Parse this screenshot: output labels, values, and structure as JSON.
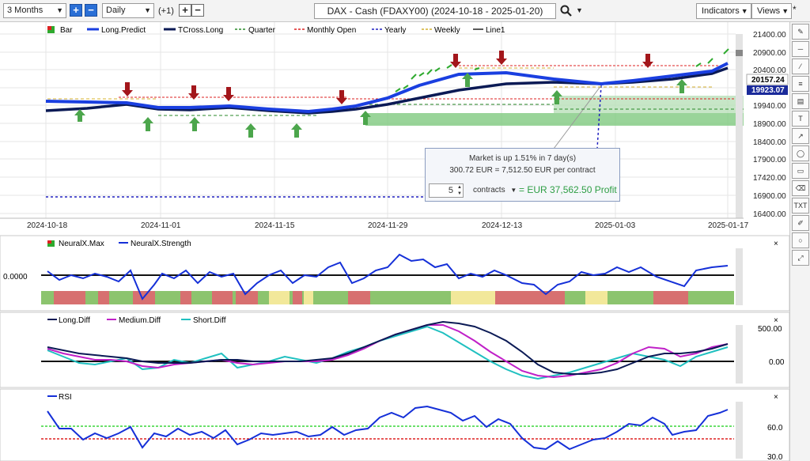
{
  "toolbar": {
    "range": "3 Months",
    "interval": "Daily",
    "offset": "(+1)",
    "title": "DAX - Cash (FDAXY00) (2024-10-18 - 2025-01-20)",
    "indicators": "Indicators",
    "views": "Views",
    "pin": "*",
    "plus": "+",
    "minus": "−"
  },
  "legend": {
    "bar": "Bar",
    "long_predict": "Long.Predict",
    "tcross_long": "TCross.Long",
    "quarter": "Quarter",
    "monthly_open": "Monthly Open",
    "yearly": "Yearly",
    "weekly": "Weekly",
    "line1": "Line1"
  },
  "price_axis": {
    "labels": [
      "21400.00",
      "20900.00",
      "20400.00",
      "19940.00",
      "18900.00",
      "18400.00",
      "17900.00",
      "17420.00",
      "16900.00",
      "16400.00"
    ],
    "last_price": "20157.24",
    "second_price": "19923.07"
  },
  "date_axis": [
    "2024-10-18",
    "2024-11-01",
    "2024-11-15",
    "2024-11-29",
    "2024-12-13",
    "2025-01-03",
    "2025-01-17"
  ],
  "popup": {
    "line1": "Market is up 1.51% in 7 day(s)",
    "line2": "300.72 EUR = 7,512.50 EUR per contract",
    "quantity": "5",
    "unit": "contracts",
    "profit": "= EUR 37,562.50 Profit"
  },
  "neural": {
    "legend_max": "NeuralX.Max",
    "legend_strength": "NeuralX.Strength",
    "axis_label": "0.0000",
    "close": "×"
  },
  "diff": {
    "legend_long": "Long.Diff",
    "legend_medium": "Medium.Diff",
    "legend_short": "Short.Diff",
    "axis_top": "500.00",
    "axis_zero": "0.00",
    "close": "×"
  },
  "rsi": {
    "legend": "RSI",
    "axis_60": "60.0",
    "axis_30": "30.0",
    "close": "×"
  },
  "colors": {
    "price_line": "#1a3fe0",
    "tcross": "#0b1a55",
    "green_zone": "#7fc97f",
    "red_arrow": "#a3161b",
    "green_arrow": "#4ca64c",
    "strength_line": "#1530d8",
    "medium": "#c020c8",
    "short": "#20c0c0"
  },
  "sidebar_icons": [
    "pencil-icon",
    "horizontal-line-icon",
    "trend-line-icon",
    "fib-icon",
    "channel-icon",
    "text-icon",
    "arrow-icon",
    "ellipse-icon",
    "callout-icon",
    "eraser-icon",
    "note-icon",
    "label-icon",
    "expand-icon",
    "circle-icon",
    "fullscreen-icon"
  ]
}
